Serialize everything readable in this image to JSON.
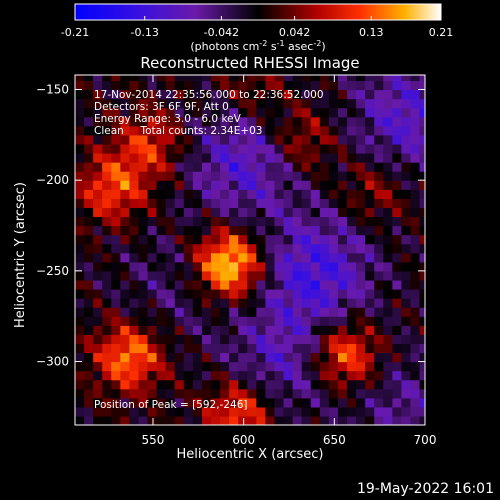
{
  "colorbar": {
    "ticks": [
      "-0.21",
      "-0.13",
      "-0.042",
      "0.042",
      "0.13",
      "0.21"
    ],
    "unit_text": "(photons cm",
    "unit_exp1": "-2",
    "unit_mid": " s",
    "unit_exp2": "-1",
    "unit_end": " asec",
    "unit_exp3": "-2",
    "unit_close": ")"
  },
  "chart_data": {
    "type": "heatmap",
    "title": "Reconstructed RHESSI Image",
    "xlabel": "Heliocentric X (arcsec)",
    "ylabel": "Heliocentric Y (arcsec)",
    "xlim": [
      507,
      700
    ],
    "ylim": [
      -335,
      -142
    ],
    "xticks": [
      550,
      600,
      650,
      700
    ],
    "yticks": [
      -150,
      -200,
      -250,
      -300
    ],
    "xtick_labels": [
      "550",
      "600",
      "650",
      "700"
    ],
    "ytick_labels": [
      "−150",
      "−200",
      "−250",
      "−300"
    ],
    "clim": [
      -0.21,
      0.21
    ],
    "colormap": "rhessi-blue-purple-black-red-yellow-white",
    "peak": [
      592,
      -246
    ],
    "annotations": {
      "time": "17-Nov-2014 22:35:56.000 to 22:36:52.000",
      "detectors": "Detectors: 3F 6F 9F, Att 0",
      "energy": "Energy Range: 3.0 - 6.0 keV",
      "clean": "Clean     Total counts: 2.34E+03",
      "peak_text": "Position of Peak = [592,-246]"
    },
    "sources": [
      {
        "x": 592,
        "y": -246,
        "amp": 0.21
      },
      {
        "x": 537,
        "y": -297,
        "amp": 0.15
      },
      {
        "x": 656,
        "y": -296,
        "amp": 0.15
      },
      {
        "x": 528,
        "y": -204,
        "amp": 0.12
      },
      {
        "x": 548,
        "y": -180,
        "amp": 0.1
      },
      {
        "x": 632,
        "y": -178,
        "amp": 0.08
      },
      {
        "x": 598,
        "y": -328,
        "amp": 0.13
      },
      {
        "x": 672,
        "y": -205,
        "amp": 0.06
      },
      {
        "x": 605,
        "y": -150,
        "amp": 0.05
      }
    ],
    "negative_regions": [
      {
        "x": 600,
        "y": -190,
        "amp": -0.1
      },
      {
        "x": 640,
        "y": -250,
        "amp": -0.12
      },
      {
        "x": 690,
        "y": -165,
        "amp": -0.1
      },
      {
        "x": 620,
        "y": -300,
        "amp": -0.08
      },
      {
        "x": 560,
        "y": -260,
        "amp": -0.04
      },
      {
        "x": 690,
        "y": -325,
        "amp": -0.06
      }
    ]
  },
  "footer_date": "19-May-2022 16:01"
}
